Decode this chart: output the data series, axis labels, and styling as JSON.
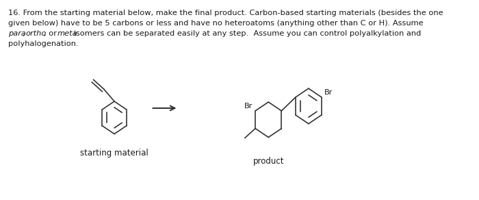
{
  "line1": "16. From the starting material below, make the final product. Carbon-based starting materials (besides the one",
  "line2": "given below) have to be 5 carbons or less and have no heteroatoms (anything other than C or H). Assume",
  "line3_italic1": "para",
  "line3_mid1": ", ",
  "line3_italic2": "ortho",
  "line3_mid2": ", or ",
  "line3_italic3": "meta",
  "line3_post": " isomers can be separated easily at any step.  Assume you can control polyalkylation and",
  "line4": "polyhalogenation.",
  "label_sm": "starting material",
  "label_prod": "product",
  "lc": "#333333",
  "tc": "#1a1a1a",
  "bg": "#ffffff",
  "fs_text": 8.2,
  "fs_label": 8.5,
  "fs_br": 8.0
}
